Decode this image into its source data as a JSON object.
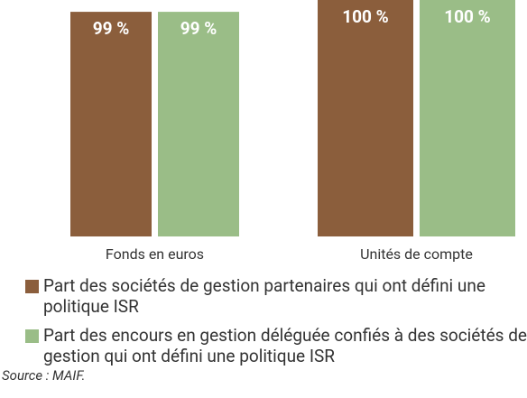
{
  "chart_data": {
    "type": "bar",
    "categories": [
      "Fonds en euros",
      "Unités de compte"
    ],
    "series": [
      {
        "name": "Part des sociétés de gestion partenaires qui ont défini une politique ISR",
        "color": "#8b5e3c",
        "values": [
          99,
          100
        ],
        "value_labels": [
          "99 %",
          "100 %"
        ]
      },
      {
        "name": "Part des encours en gestion déléguée confiés à des sociétés de gestion qui ont défini une politique ISR",
        "color": "#9abd87",
        "values": [
          99,
          100
        ],
        "value_labels": [
          "99 %",
          "100 %"
        ]
      }
    ],
    "ylim": [
      80,
      100
    ],
    "source": "Source : MAIF."
  }
}
